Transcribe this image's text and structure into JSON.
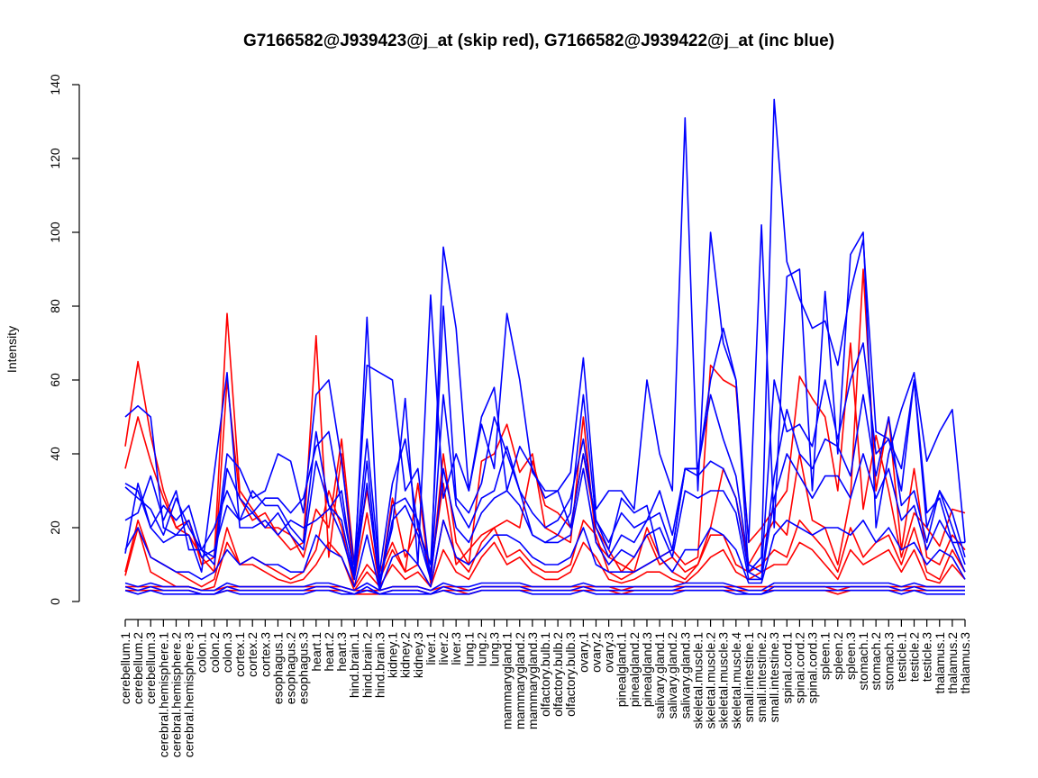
{
  "chart_data": {
    "type": "line",
    "title": "G7166582@J939423@j_at (skip red), G7166582@J939422@j_at (inc blue)",
    "xlabel": "",
    "ylabel": "Intensity",
    "ylim": [
      0,
      140
    ],
    "yticks": [
      0,
      20,
      40,
      60,
      80,
      100,
      120,
      140
    ],
    "grid": false,
    "legend": "none",
    "colors": {
      "skip": "#ff0000",
      "inc": "#0000ff",
      "axis": "#000000"
    },
    "categories": [
      "cerebellum.1",
      "cerebellum.2",
      "cerebellum.3",
      "cerebral.hemisphere.1",
      "cerebral.hemisphere.2",
      "cerebral.hemisphere.3",
      "colon.1",
      "colon.2",
      "colon.3",
      "cortex.1",
      "cortex.2",
      "cortex.3",
      "esophagus.1",
      "esophagus.2",
      "esophagus.3",
      "heart.1",
      "heart.2",
      "heart.3",
      "hind.brain.1",
      "hind.brain.2",
      "hind.brain.3",
      "kidney.1",
      "kidney.2",
      "kidney.3",
      "liver.1",
      "liver.2",
      "liver.3",
      "lung.1",
      "lung.2",
      "lung.3",
      "mammarygland.1",
      "mammarygland.2",
      "mammarygland.3",
      "olfactory.bulb.1",
      "olfactory.bulb.2",
      "olfactory.bulb.3",
      "ovary.1",
      "ovary.2",
      "ovary.3",
      "pinealgland.1",
      "pinealgland.2",
      "pinealgland.3",
      "salivary.gland.1",
      "salivary.gland.2",
      "salivary.gland.3",
      "skeletal.muscle.1",
      "skeletal.muscle.2",
      "skeletal.muscle.3",
      "skeletal.muscle.4",
      "small.intestine.1",
      "small.intestine.2",
      "small.intestine.3",
      "spinal.cord.1",
      "spinal.cord.2",
      "spinal.cord.3",
      "spleen.1",
      "spleen.2",
      "spleen.3",
      "stomach.1",
      "stomach.2",
      "stomach.3",
      "testicle.1",
      "testicle.2",
      "testicle.3",
      "thalamus.1",
      "thalamus.2",
      "thalamus.3"
    ],
    "series": [
      {
        "group": "skip",
        "values": [
          42,
          65,
          45,
          30,
          20,
          22,
          10,
          12,
          78,
          30,
          25,
          20,
          20,
          18,
          12,
          25,
          20,
          44,
          10,
          30,
          8,
          16,
          8,
          32,
          5,
          40,
          16,
          10,
          38,
          40,
          48,
          35,
          40,
          20,
          18,
          16,
          50,
          16,
          12,
          10,
          8,
          20,
          12,
          14,
          10,
          12,
          64,
          60,
          58,
          16,
          20,
          25,
          30,
          61,
          55,
          50,
          30,
          70,
          25,
          45,
          30,
          12,
          24,
          20,
          15,
          25,
          24
        ]
      },
      {
        "group": "skip",
        "values": [
          36,
          50,
          38,
          28,
          20,
          18,
          12,
          8,
          60,
          28,
          22,
          24,
          18,
          14,
          16,
          72,
          12,
          40,
          6,
          24,
          4,
          28,
          12,
          20,
          8,
          32,
          10,
          14,
          18,
          20,
          22,
          20,
          38,
          26,
          24,
          20,
          40,
          20,
          14,
          8,
          12,
          18,
          10,
          12,
          8,
          10,
          20,
          36,
          28,
          10,
          16,
          22,
          18,
          40,
          22,
          20,
          10,
          28,
          90,
          30,
          50,
          14,
          36,
          12,
          10,
          18,
          14
        ]
      },
      {
        "group": "skip",
        "values": [
          8,
          22,
          12,
          10,
          8,
          6,
          4,
          6,
          20,
          10,
          12,
          10,
          8,
          6,
          8,
          14,
          30,
          20,
          4,
          10,
          6,
          14,
          8,
          10,
          4,
          22,
          12,
          8,
          16,
          20,
          12,
          14,
          10,
          8,
          8,
          10,
          22,
          18,
          8,
          6,
          8,
          10,
          12,
          8,
          6,
          10,
          18,
          18,
          10,
          8,
          10,
          14,
          12,
          22,
          18,
          14,
          8,
          20,
          12,
          16,
          18,
          10,
          20,
          8,
          6,
          14,
          8
        ]
      },
      {
        "group": "skip",
        "values": [
          7,
          20,
          8,
          6,
          4,
          4,
          3,
          4,
          16,
          10,
          10,
          8,
          6,
          5,
          6,
          10,
          16,
          12,
          3,
          8,
          4,
          10,
          6,
          8,
          4,
          14,
          8,
          6,
          12,
          16,
          10,
          12,
          8,
          6,
          6,
          8,
          16,
          12,
          6,
          5,
          6,
          8,
          8,
          6,
          5,
          8,
          12,
          14,
          8,
          6,
          8,
          10,
          10,
          16,
          14,
          10,
          6,
          14,
          10,
          12,
          14,
          8,
          14,
          6,
          5,
          10,
          6
        ]
      },
      {
        "group": "skip",
        "values": [
          4,
          4,
          4,
          4,
          4,
          4,
          3,
          3,
          4,
          4,
          4,
          4,
          4,
          4,
          4,
          4,
          4,
          4,
          3,
          3,
          3,
          4,
          4,
          4,
          3,
          4,
          4,
          3,
          4,
          4,
          4,
          4,
          4,
          4,
          4,
          4,
          4,
          4,
          4,
          3,
          4,
          4,
          4,
          4,
          4,
          4,
          4,
          4,
          4,
          4,
          4,
          4,
          4,
          4,
          4,
          4,
          3,
          4,
          4,
          4,
          4,
          4,
          4,
          4,
          4,
          4,
          4
        ]
      },
      {
        "group": "skip",
        "values": [
          3,
          3,
          3,
          3,
          3,
          3,
          2,
          2,
          3,
          3,
          3,
          3,
          3,
          3,
          3,
          3,
          3,
          3,
          2,
          2,
          2,
          3,
          3,
          3,
          2,
          3,
          3,
          2,
          3,
          3,
          3,
          3,
          3,
          3,
          3,
          3,
          3,
          3,
          3,
          2,
          3,
          3,
          3,
          3,
          3,
          3,
          3,
          3,
          3,
          3,
          3,
          3,
          3,
          3,
          3,
          3,
          2,
          3,
          3,
          3,
          3,
          3,
          3,
          3,
          3,
          3,
          3
        ]
      },
      {
        "group": "inc",
        "values": [
          50,
          53,
          50,
          20,
          18,
          18,
          8,
          35,
          62,
          20,
          20,
          22,
          18,
          22,
          20,
          22,
          25,
          30,
          6,
          77,
          6,
          20,
          55,
          10,
          83,
          28,
          40,
          30,
          48,
          36,
          78,
          60,
          35,
          30,
          30,
          35,
          66,
          25,
          30,
          30,
          25,
          60,
          40,
          30,
          131,
          30,
          100,
          70,
          60,
          16,
          102,
          20,
          88,
          90,
          30,
          84,
          40,
          94,
          100,
          20,
          40,
          52,
          62,
          38,
          46,
          52,
          16
        ]
      },
      {
        "group": "inc",
        "values": [
          31,
          28,
          25,
          18,
          28,
          20,
          14,
          12,
          40,
          36,
          28,
          30,
          40,
          38,
          24,
          56,
          60,
          38,
          10,
          64,
          62,
          60,
          30,
          36,
          6,
          96,
          74,
          30,
          50,
          58,
          30,
          42,
          36,
          28,
          30,
          20,
          40,
          22,
          14,
          28,
          24,
          26,
          12,
          14,
          36,
          36,
          60,
          74,
          60,
          8,
          12,
          136,
          92,
          82,
          74,
          76,
          64,
          84,
          98,
          46,
          44,
          36,
          60,
          24,
          28,
          16,
          16
        ]
      },
      {
        "group": "inc",
        "values": [
          22,
          24,
          34,
          22,
          30,
          14,
          14,
          10,
          36,
          28,
          24,
          28,
          28,
          24,
          28,
          42,
          46,
          26,
          8,
          44,
          8,
          32,
          44,
          20,
          10,
          80,
          28,
          24,
          32,
          50,
          40,
          30,
          18,
          16,
          18,
          24,
          56,
          22,
          16,
          24,
          20,
          22,
          30,
          18,
          36,
          36,
          56,
          44,
          34,
          10,
          8,
          60,
          46,
          48,
          42,
          60,
          44,
          60,
          70,
          40,
          44,
          30,
          60,
          20,
          30,
          24,
          12
        ]
      },
      {
        "group": "inc",
        "values": [
          13,
          32,
          20,
          26,
          22,
          26,
          14,
          20,
          30,
          22,
          30,
          26,
          26,
          20,
          16,
          46,
          26,
          22,
          6,
          38,
          4,
          26,
          28,
          22,
          6,
          56,
          26,
          20,
          28,
          30,
          42,
          30,
          24,
          20,
          22,
          28,
          44,
          20,
          12,
          18,
          16,
          22,
          24,
          14,
          36,
          34,
          38,
          36,
          28,
          8,
          6,
          34,
          52,
          40,
          36,
          44,
          42,
          34,
          56,
          34,
          50,
          26,
          30,
          16,
          30,
          20,
          10
        ]
      },
      {
        "group": "inc",
        "values": [
          32,
          30,
          20,
          16,
          18,
          22,
          12,
          14,
          26,
          22,
          24,
          20,
          24,
          18,
          14,
          38,
          26,
          18,
          6,
          32,
          4,
          22,
          26,
          18,
          6,
          36,
          20,
          16,
          24,
          28,
          30,
          26,
          18,
          16,
          16,
          18,
          36,
          16,
          10,
          14,
          12,
          18,
          20,
          12,
          30,
          28,
          30,
          30,
          24,
          6,
          6,
          28,
          40,
          34,
          28,
          34,
          34,
          28,
          40,
          28,
          36,
          22,
          26,
          14,
          22,
          16,
          8
        ]
      },
      {
        "group": "inc",
        "values": [
          14,
          20,
          12,
          10,
          8,
          8,
          6,
          8,
          14,
          10,
          12,
          10,
          10,
          8,
          8,
          18,
          14,
          12,
          4,
          18,
          3,
          12,
          14,
          10,
          4,
          22,
          12,
          10,
          14,
          18,
          18,
          16,
          12,
          10,
          10,
          12,
          20,
          10,
          8,
          8,
          8,
          10,
          12,
          8,
          14,
          14,
          20,
          18,
          14,
          5,
          5,
          18,
          22,
          20,
          18,
          20,
          20,
          18,
          22,
          16,
          20,
          14,
          16,
          10,
          14,
          12,
          6
        ]
      },
      {
        "group": "inc",
        "values": [
          5,
          4,
          5,
          4,
          4,
          4,
          3,
          3,
          5,
          4,
          4,
          4,
          4,
          4,
          4,
          5,
          5,
          4,
          3,
          5,
          3,
          4,
          4,
          4,
          3,
          5,
          4,
          4,
          5,
          5,
          5,
          5,
          4,
          4,
          4,
          4,
          5,
          4,
          4,
          4,
          4,
          4,
          4,
          4,
          5,
          5,
          5,
          5,
          4,
          3,
          3,
          5,
          5,
          5,
          5,
          5,
          5,
          5,
          5,
          5,
          5,
          4,
          5,
          4,
          4,
          4,
          4
        ]
      },
      {
        "group": "inc",
        "values": [
          4,
          3,
          4,
          3,
          3,
          3,
          2,
          2,
          4,
          3,
          3,
          3,
          3,
          3,
          3,
          4,
          4,
          3,
          2,
          4,
          2,
          3,
          3,
          3,
          2,
          4,
          3,
          3,
          4,
          4,
          4,
          4,
          3,
          3,
          3,
          3,
          4,
          3,
          3,
          3,
          3,
          3,
          3,
          3,
          4,
          4,
          4,
          4,
          3,
          2,
          2,
          4,
          4,
          4,
          4,
          4,
          4,
          4,
          4,
          4,
          4,
          3,
          4,
          3,
          3,
          3,
          3
        ]
      },
      {
        "group": "inc",
        "values": [
          3,
          2,
          3,
          2,
          2,
          2,
          2,
          2,
          3,
          2,
          2,
          2,
          2,
          2,
          2,
          3,
          3,
          2,
          2,
          3,
          2,
          2,
          2,
          2,
          2,
          3,
          2,
          2,
          3,
          3,
          3,
          3,
          2,
          2,
          2,
          2,
          3,
          2,
          2,
          2,
          2,
          2,
          2,
          2,
          3,
          3,
          3,
          3,
          2,
          2,
          2,
          3,
          3,
          3,
          3,
          3,
          3,
          3,
          3,
          3,
          3,
          2,
          3,
          2,
          2,
          2,
          2
        ]
      }
    ]
  }
}
